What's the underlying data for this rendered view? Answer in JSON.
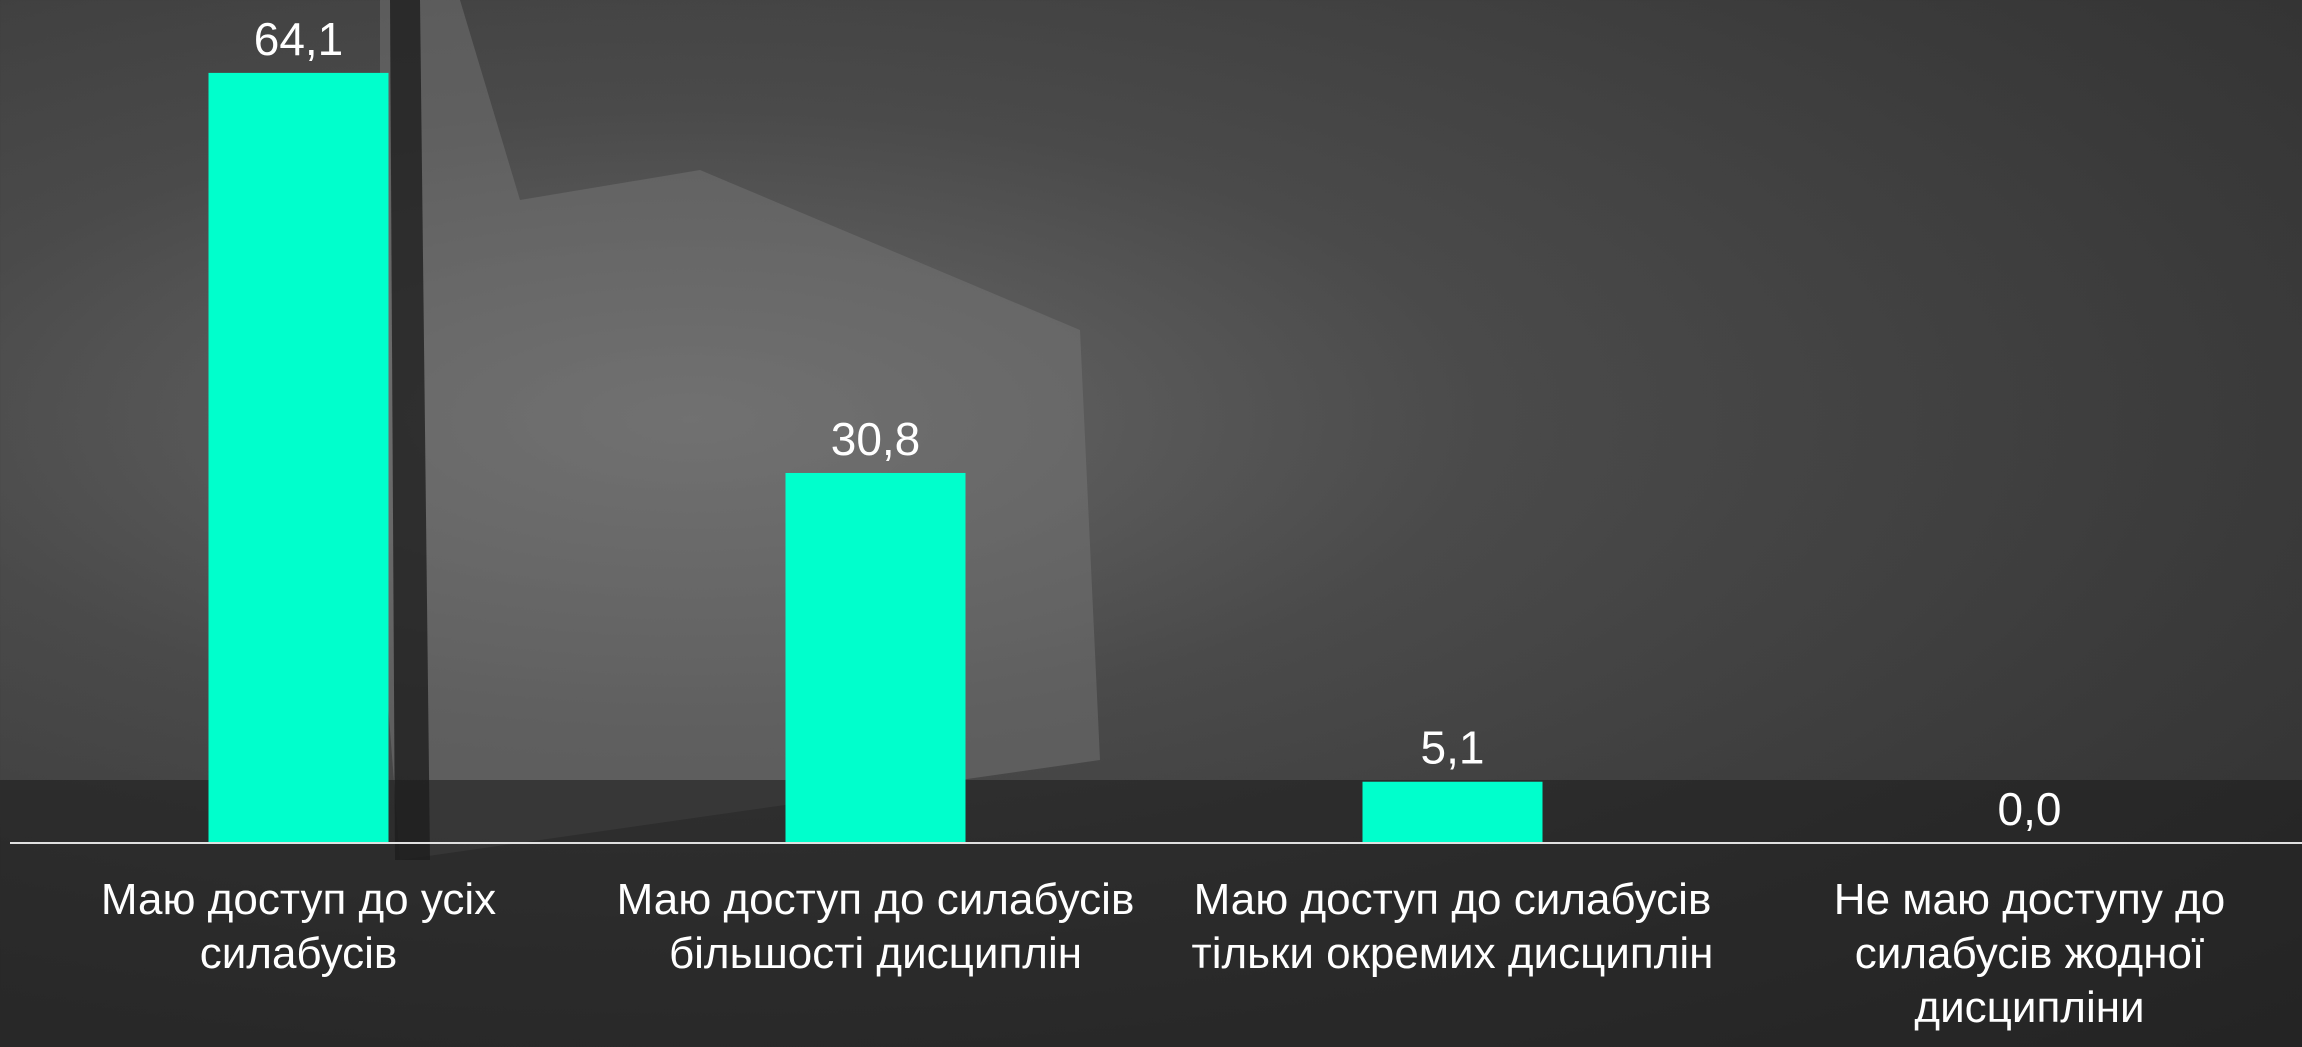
{
  "chart_data": {
    "type": "bar",
    "categories": [
      "Маю доступ до усіх силабусів",
      "Маю доступ до силабусів більшості дисциплін",
      "Маю доступ до силабусів тільки окремих дисциплін",
      "Не маю доступу до силабусів жодної дисципліни"
    ],
    "values": [
      64.1,
      30.8,
      5.1,
      0.0
    ],
    "value_labels": [
      "64,1",
      "30,8",
      "5,1",
      "0,0"
    ],
    "color": "#00ffcc",
    "ylim": [
      0,
      70
    ]
  }
}
